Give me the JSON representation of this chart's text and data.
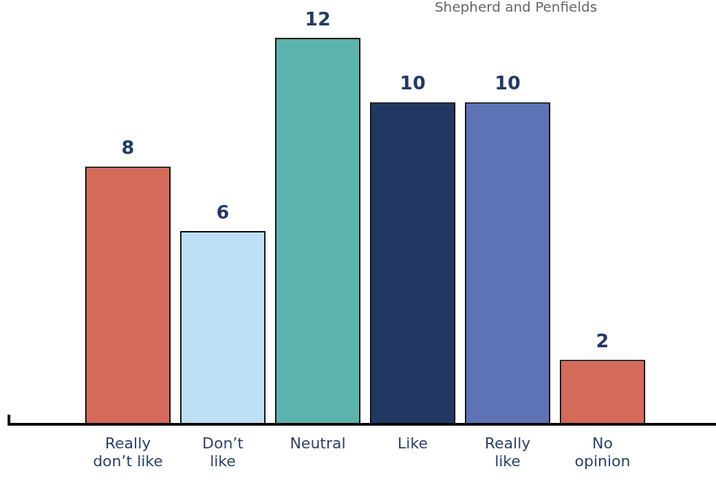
{
  "chart_data": {
    "type": "bar",
    "subtitle": "Shepherd and Penfields",
    "categories": [
      "Really don’t like",
      "Don’t like",
      "Neutral",
      "Like",
      "Really like",
      "No opinion"
    ],
    "values": [
      8,
      6,
      12,
      10,
      10,
      2
    ],
    "colors": [
      "#d46a5a",
      "#bde0f6",
      "#5cb3ad",
      "#213863",
      "#5e73b6",
      "#d46a5a"
    ],
    "data_labels": true,
    "grid": false,
    "legend": false
  }
}
